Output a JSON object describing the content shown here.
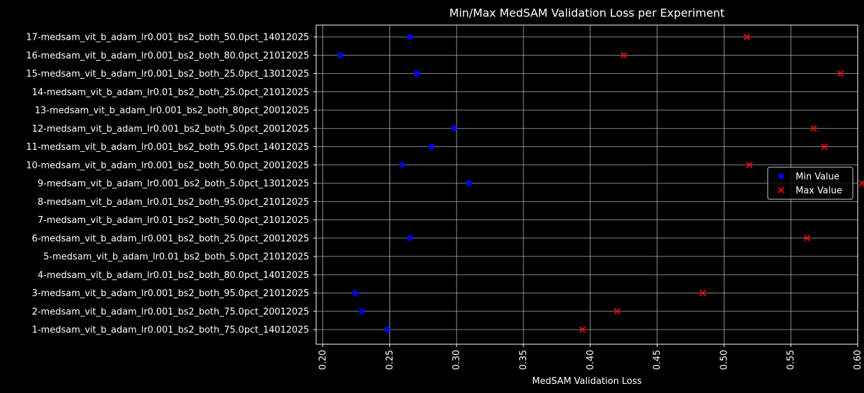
{
  "chart_data": {
    "type": "scatter",
    "title": "Min/Max MedSAM Validation Loss per Experiment",
    "xlabel": "MedSAM Validation Loss",
    "ylabel": "",
    "xlim": [
      0.195,
      0.6
    ],
    "xticks": [
      "0.20",
      "0.25",
      "0.30",
      "0.35",
      "0.40",
      "0.45",
      "0.50",
      "0.55",
      "0.60"
    ],
    "xtick_values": [
      0.2,
      0.25,
      0.3,
      0.35,
      0.4,
      0.45,
      0.5,
      0.55,
      0.6
    ],
    "grid": true,
    "legend_position": "center-right",
    "categories": [
      "1-medsam_vit_b_adam_lr0.001_bs2_both_75.0pct_14012025",
      "2-medsam_vit_b_adam_lr0.001_bs2_both_75.0pct_20012025",
      "3-medsam_vit_b_adam_lr0.001_bs2_both_95.0pct_21012025",
      "4-medsam_vit_b_adam_lr0.01_bs2_both_80.0pct_14012025",
      "5-medsam_vit_b_adam_lr0.01_bs2_both_5.0pct_21012025",
      "6-medsam_vit_b_adam_lr0.001_bs2_both_25.0pct_20012025",
      "7-medsam_vit_b_adam_lr0.01_bs2_both_50.0pct_21012025",
      "8-medsam_vit_b_adam_lr0.01_bs2_both_95.0pct_21012025",
      "9-medsam_vit_b_adam_lr0.001_bs2_both_5.0pct_13012025",
      "10-medsam_vit_b_adam_lr0.001_bs2_both_50.0pct_20012025",
      "11-medsam_vit_b_adam_lr0.001_bs2_both_95.0pct_14012025",
      "12-medsam_vit_b_adam_lr0.001_bs2_both_5.0pct_20012025",
      "13-medsam_vit_b_adam_lr0.001_bs2_both_80pct_20012025",
      "14-medsam_vit_b_adam_lr0.01_bs2_both_25.0pct_21012025",
      "15-medsam_vit_b_adam_lr0.001_bs2_both_25.0pct_13012025",
      "16-medsam_vit_b_adam_lr0.001_bs2_both_80.0pct_21012025",
      "17-medsam_vit_b_adam_lr0.001_bs2_both_50.0pct_14012025"
    ],
    "series": [
      {
        "name": "Min Value",
        "marker": "circle",
        "color": "#0000ff",
        "values": [
          0.248,
          0.229,
          0.224,
          null,
          null,
          0.265,
          null,
          null,
          0.309,
          0.259,
          0.281,
          0.298,
          null,
          null,
          0.27,
          0.213,
          0.265
        ]
      },
      {
        "name": "Max Value",
        "marker": "x",
        "color": "#ff0000",
        "values": [
          0.394,
          0.42,
          0.484,
          null,
          null,
          0.562,
          null,
          null,
          0.603,
          0.519,
          0.575,
          0.567,
          null,
          null,
          0.587,
          0.425,
          0.517
        ]
      }
    ]
  }
}
